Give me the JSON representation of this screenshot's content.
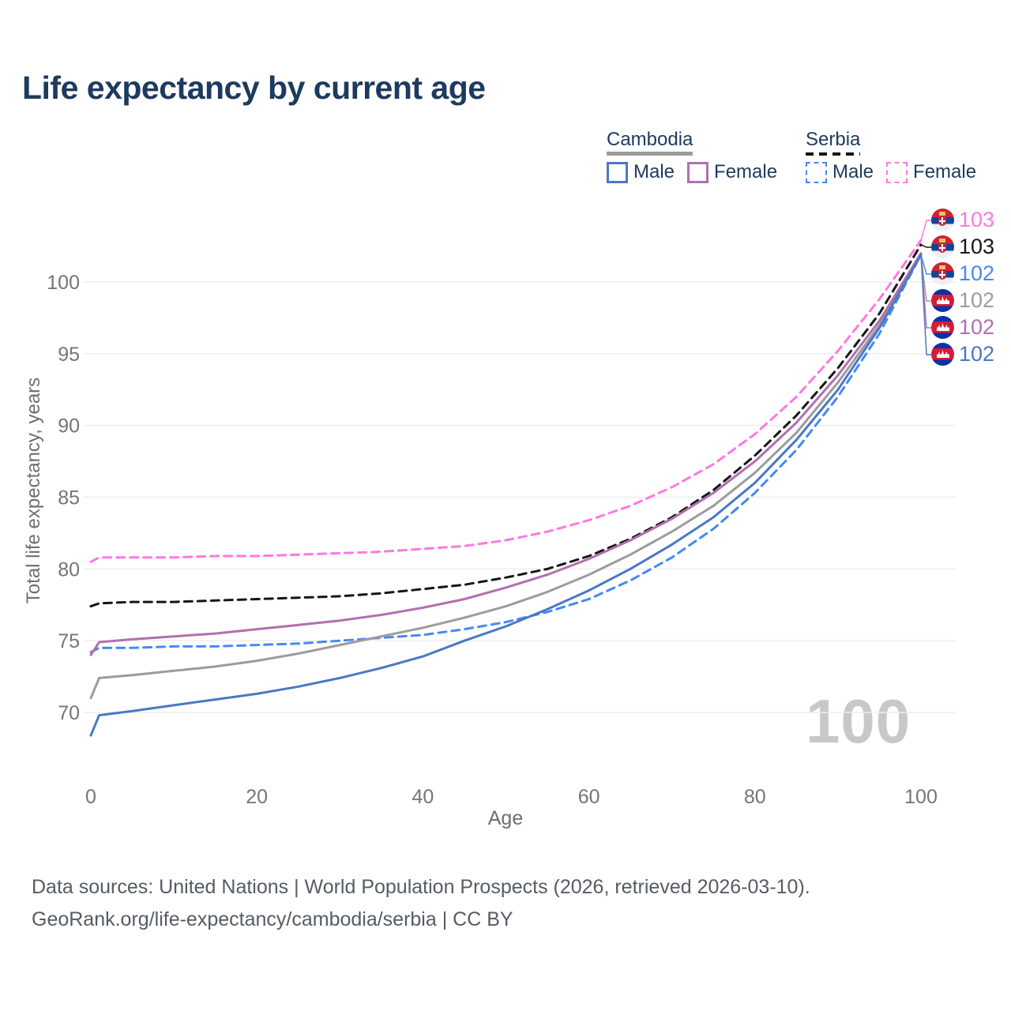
{
  "title": "Life expectancy by current age",
  "watermark": "100",
  "legend": {
    "groups": [
      {
        "label": "Cambodia",
        "underline_style": "solid",
        "items": [
          {
            "label": "Male"
          },
          {
            "label": "Female"
          }
        ]
      },
      {
        "label": "Serbia",
        "underline_style": "dashed",
        "items": [
          {
            "label": "Male"
          },
          {
            "label": "Female"
          }
        ]
      }
    ]
  },
  "footer": {
    "line1": "Data sources: United Nations | World Population Prospects (2026, retrieved 2026-03-10).",
    "line2": "GeoRank.org/life-expectancy/cambodia/serbia | CC BY"
  },
  "colors": {
    "title_text": "#1d3a5f",
    "axis_text": "#757575",
    "axis_title_text": "#6e6e6e",
    "gridline": "#ededed",
    "footer_text": "#555c63",
    "watermark": "#c8c8c8"
  },
  "chart_data": {
    "type": "line",
    "title": "Life expectancy by current age",
    "xlabel": "Age",
    "ylabel": "Total life expectancy, years",
    "xlim": [
      0,
      100
    ],
    "ylim": [
      67,
      104
    ],
    "xticks": [
      0,
      20,
      40,
      60,
      80,
      100
    ],
    "yticks": [
      70,
      75,
      80,
      85,
      90,
      95,
      100
    ],
    "grid": "horizontal-only",
    "legend_position": "top-right",
    "hover_age_watermark": "100",
    "ages": [
      0,
      1,
      5,
      10,
      15,
      20,
      25,
      30,
      35,
      40,
      45,
      50,
      55,
      60,
      65,
      70,
      75,
      80,
      85,
      90,
      95,
      100
    ],
    "series": [
      {
        "id": "serbia-female",
        "country": "Serbia",
        "sex": "Female",
        "line_style": "dashed",
        "color": "#ff78e2",
        "flag": "serbia",
        "end_label": "103",
        "values": [
          80.5,
          80.8,
          80.8,
          80.8,
          80.9,
          80.9,
          81.0,
          81.1,
          81.2,
          81.4,
          81.6,
          82.0,
          82.6,
          83.4,
          84.4,
          85.7,
          87.3,
          89.4,
          92.0,
          95.2,
          98.8,
          102.9
        ]
      },
      {
        "id": "serbia-both-sexes",
        "country": "Serbia",
        "sex": "Both sexes",
        "line_style": "dashed",
        "color": "#161616",
        "flag": "serbia",
        "end_label": "103",
        "values": [
          77.4,
          77.6,
          77.7,
          77.7,
          77.8,
          77.9,
          78.0,
          78.1,
          78.3,
          78.6,
          78.9,
          79.4,
          80.0,
          80.9,
          82.1,
          83.6,
          85.5,
          87.9,
          90.7,
          94.0,
          97.8,
          102.6
        ]
      },
      {
        "id": "serbia-male",
        "country": "Serbia",
        "sex": "Male",
        "line_style": "dashed",
        "color": "#4589f2",
        "flag": "serbia",
        "end_label": "102",
        "values": [
          74.2,
          74.5,
          74.5,
          74.6,
          74.6,
          74.7,
          74.8,
          75.0,
          75.2,
          75.4,
          75.8,
          76.3,
          77.0,
          77.9,
          79.2,
          80.8,
          82.8,
          85.3,
          88.3,
          92.0,
          96.4,
          101.9
        ]
      },
      {
        "id": "cambodia-both-sexes",
        "country": "Cambodia",
        "sex": "Both sexes",
        "line_style": "solid",
        "color": "#9c9c9c",
        "flag": "cambodia",
        "end_label": "102",
        "values": [
          71.0,
          72.4,
          72.6,
          72.9,
          73.2,
          73.6,
          74.1,
          74.7,
          75.3,
          75.9,
          76.6,
          77.4,
          78.4,
          79.6,
          81.0,
          82.6,
          84.4,
          86.7,
          89.5,
          93.0,
          97.0,
          101.9
        ]
      },
      {
        "id": "cambodia-female",
        "country": "Cambodia",
        "sex": "Female",
        "line_style": "solid",
        "color": "#b170af",
        "flag": "cambodia",
        "end_label": "102",
        "values": [
          74.0,
          74.9,
          75.1,
          75.3,
          75.5,
          75.8,
          76.1,
          76.4,
          76.8,
          77.3,
          77.9,
          78.7,
          79.6,
          80.7,
          82.0,
          83.5,
          85.3,
          87.5,
          90.2,
          93.5,
          97.3,
          102.0
        ]
      },
      {
        "id": "cambodia-male",
        "country": "Cambodia",
        "sex": "Male",
        "line_style": "solid",
        "color": "#4a78c5",
        "flag": "cambodia",
        "end_label": "102",
        "values": [
          68.4,
          69.8,
          70.1,
          70.5,
          70.9,
          71.3,
          71.8,
          72.4,
          73.1,
          73.9,
          75.0,
          76.0,
          77.2,
          78.5,
          80.0,
          81.7,
          83.6,
          86.0,
          89.0,
          92.5,
          96.8,
          101.9
        ]
      }
    ]
  }
}
